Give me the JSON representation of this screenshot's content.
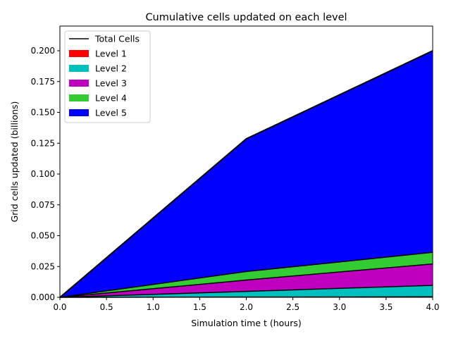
{
  "chart_data": {
    "type": "area",
    "stacked": true,
    "title": "Cumulative cells updated on each level",
    "xlabel": "Simulation time t (hours)",
    "ylabel": "Grid cells updated (billions)",
    "xlim": [
      0.0,
      4.0
    ],
    "ylim": [
      0.0,
      0.22
    ],
    "grid": false,
    "legend_position": "top-left",
    "x": [
      0.0,
      2.0,
      4.0
    ],
    "xticks": [
      "0.0",
      "0.5",
      "1.0",
      "1.5",
      "2.0",
      "2.5",
      "3.0",
      "3.5",
      "4.0"
    ],
    "yticks": [
      "0.000",
      "0.025",
      "0.050",
      "0.075",
      "0.100",
      "0.125",
      "0.150",
      "0.175",
      "0.200"
    ],
    "series": [
      {
        "name": "Level 1",
        "color": "#ff0000",
        "values": [
          0.0,
          0.0002,
          0.0004
        ]
      },
      {
        "name": "Level 2",
        "color": "#00bfbf",
        "values": [
          0.0,
          0.0046,
          0.0093
        ]
      },
      {
        "name": "Level 3",
        "color": "#bf00bf",
        "values": [
          0.0,
          0.0092,
          0.0174
        ]
      },
      {
        "name": "Level 4",
        "color": "#33cc33",
        "values": [
          0.0,
          0.0069,
          0.0094
        ]
      },
      {
        "name": "Level 5",
        "color": "#0000ff",
        "values": [
          0.0,
          0.1077,
          0.1635
        ]
      }
    ],
    "total_line": {
      "name": "Total Cells",
      "color": "#000000",
      "values": [
        0.0,
        0.1286,
        0.2
      ]
    }
  }
}
